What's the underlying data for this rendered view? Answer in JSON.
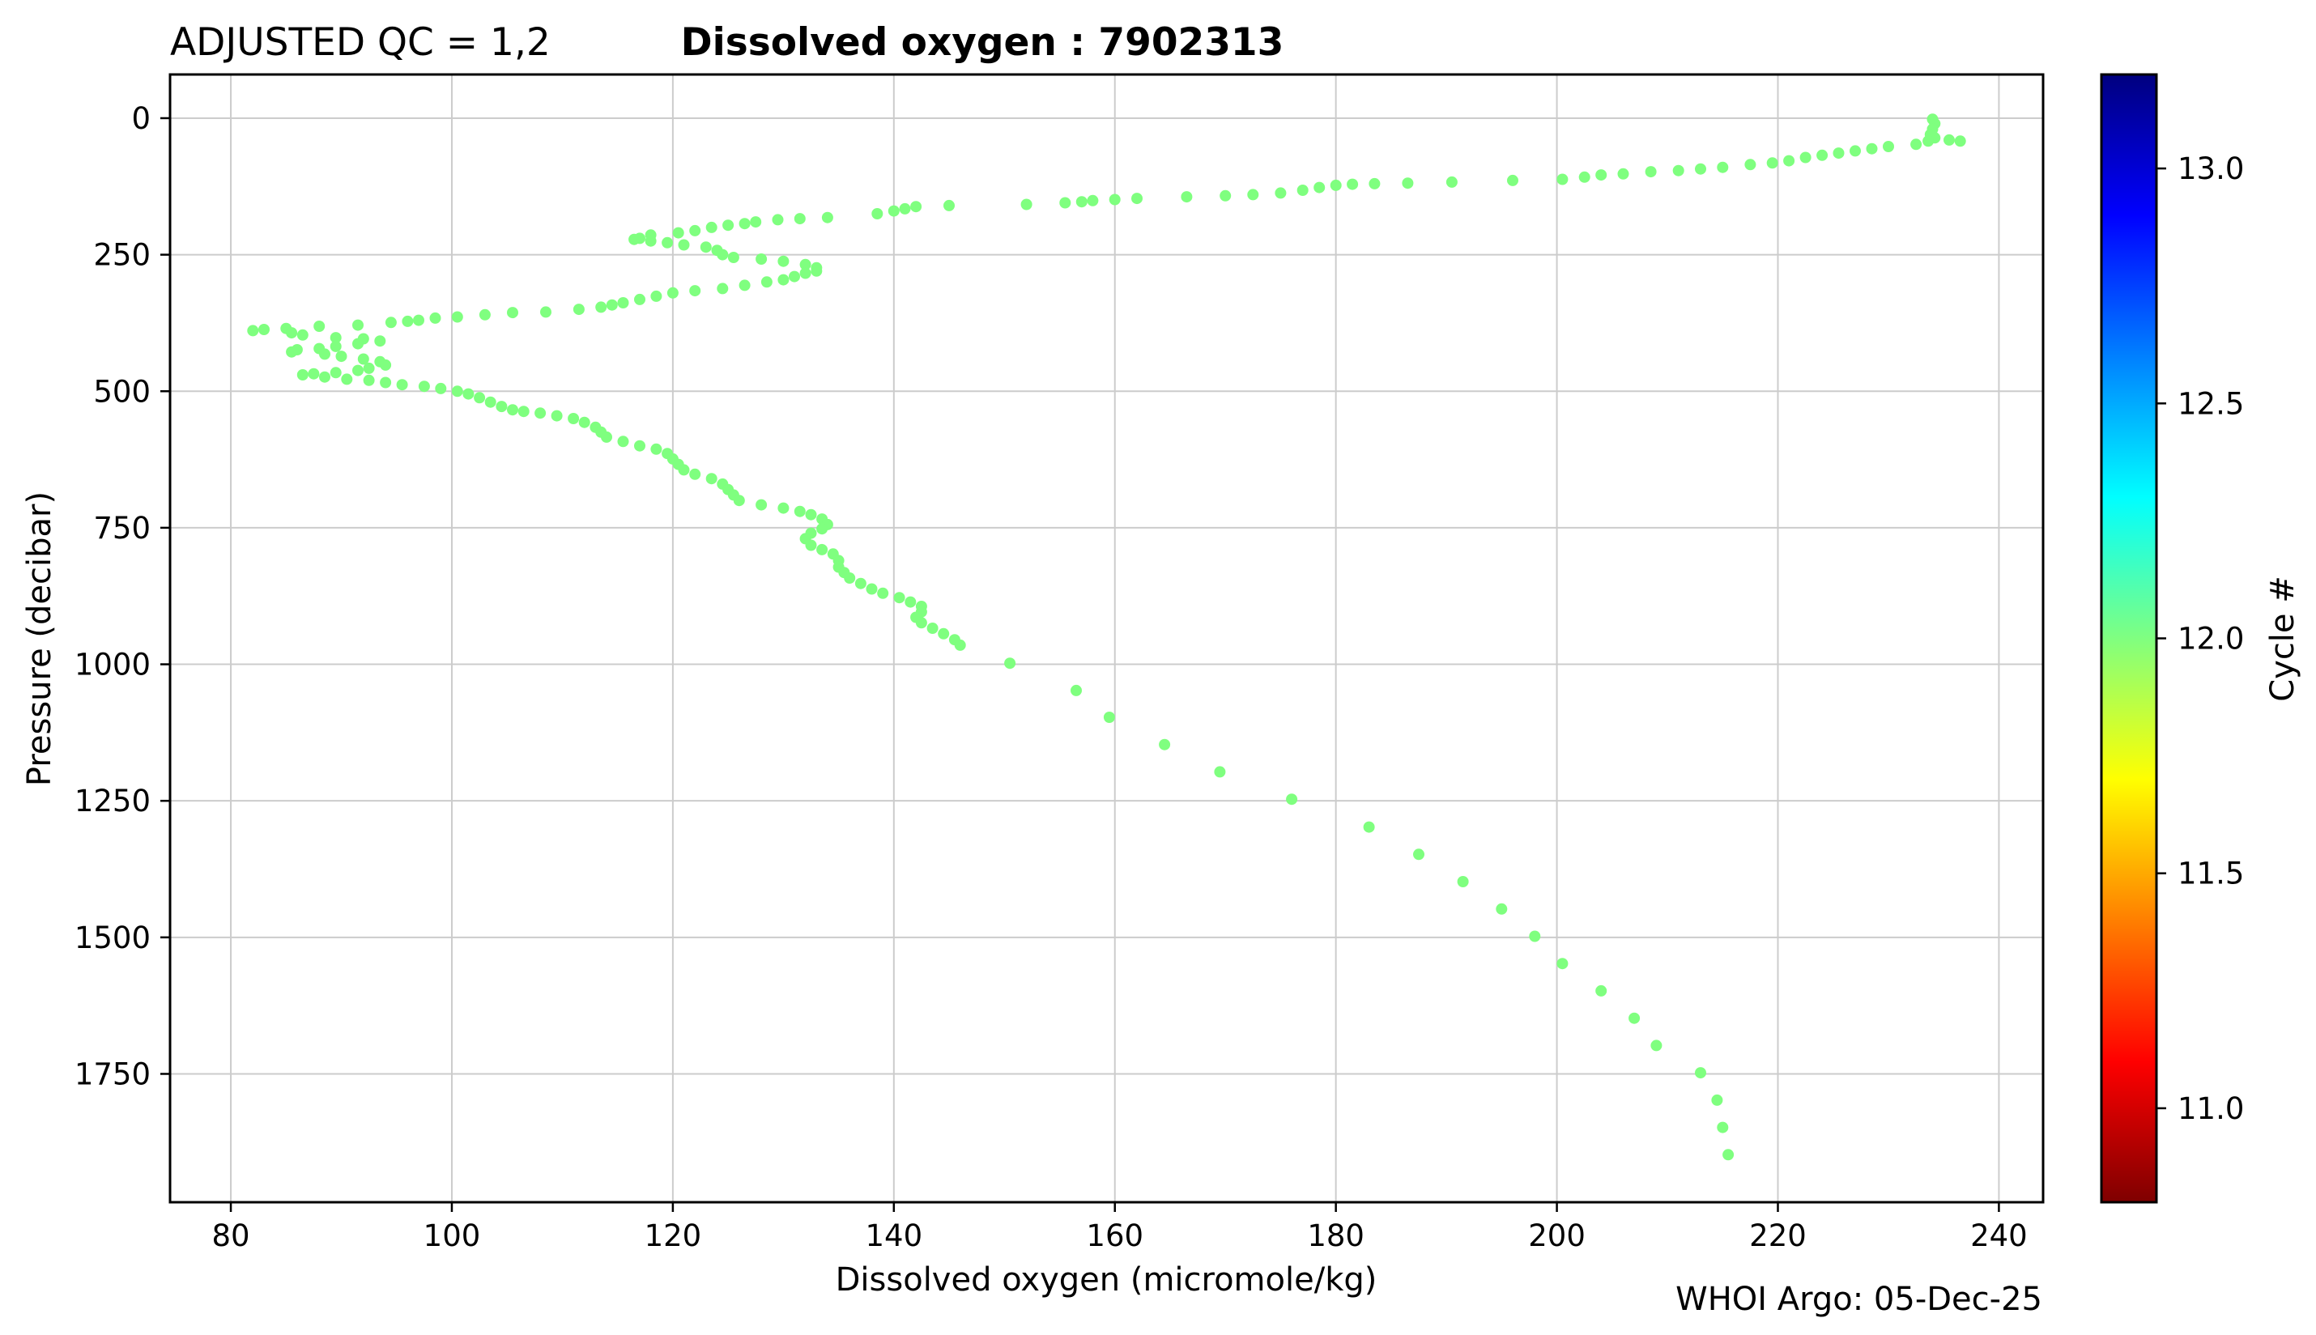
{
  "chart_data": {
    "type": "scatter",
    "title_left": "ADJUSTED QC = 1,2",
    "title": "Dissolved oxygen : 7902313",
    "xlabel": "Dissolved oxygen  (micromole/kg)",
    "ylabel": "Pressure  (decibar)",
    "xlim": [
      74.5,
      244
    ],
    "ylim": [
      1985,
      -80
    ],
    "y_inverted": true,
    "grid": true,
    "xticks": [
      80,
      100,
      120,
      140,
      160,
      180,
      200,
      220,
      240
    ],
    "yticks": [
      0,
      250,
      500,
      750,
      1000,
      1250,
      1500,
      1750
    ],
    "colorbar": {
      "label": "Cycle #",
      "range": [
        10.8,
        13.2
      ],
      "ticks": [
        11.0,
        11.5,
        12.0,
        12.5,
        13.0
      ],
      "colormap": "jet",
      "colormap_stops": [
        "#7f0000",
        "#ff0000",
        "#ff7f00",
        "#ffff00",
        "#80ff80",
        "#00ffff",
        "#0080ff",
        "#0000ff",
        "#00007f"
      ]
    },
    "series": [
      {
        "name": "Cycle 12",
        "cycle": 12,
        "color": "#7fff7f",
        "points": [
          [
            234.0,
            2
          ],
          [
            234.2,
            10
          ],
          [
            234.0,
            20
          ],
          [
            233.8,
            30
          ],
          [
            234.2,
            36
          ],
          [
            233.6,
            42
          ],
          [
            235.5,
            40
          ],
          [
            236.5,
            42
          ],
          [
            232.5,
            48
          ],
          [
            230.0,
            52
          ],
          [
            228.5,
            56
          ],
          [
            227.0,
            60
          ],
          [
            225.5,
            64
          ],
          [
            224.0,
            68
          ],
          [
            222.5,
            72
          ],
          [
            221.0,
            78
          ],
          [
            219.5,
            82
          ],
          [
            217.5,
            85
          ],
          [
            215.0,
            90
          ],
          [
            213.0,
            93
          ],
          [
            211.0,
            96
          ],
          [
            208.5,
            98
          ],
          [
            206.0,
            102
          ],
          [
            204.0,
            104
          ],
          [
            202.5,
            108
          ],
          [
            200.5,
            112
          ],
          [
            196.0,
            114
          ],
          [
            190.5,
            117
          ],
          [
            186.5,
            119
          ],
          [
            183.5,
            120
          ],
          [
            181.5,
            121
          ],
          [
            180.0,
            123
          ],
          [
            178.5,
            127
          ],
          [
            177.0,
            132
          ],
          [
            175.0,
            137
          ],
          [
            172.5,
            140
          ],
          [
            170.0,
            142
          ],
          [
            166.5,
            144
          ],
          [
            162.0,
            147
          ],
          [
            160.0,
            149
          ],
          [
            158.0,
            151
          ],
          [
            157.0,
            153
          ],
          [
            155.5,
            155
          ],
          [
            152.0,
            158
          ],
          [
            145.0,
            160
          ],
          [
            142.0,
            162
          ],
          [
            141.0,
            166
          ],
          [
            140.0,
            170
          ],
          [
            138.5,
            175
          ],
          [
            134.0,
            182
          ],
          [
            131.5,
            184
          ],
          [
            129.5,
            186
          ],
          [
            127.5,
            190
          ],
          [
            126.5,
            193
          ],
          [
            125.0,
            196
          ],
          [
            123.5,
            200
          ],
          [
            122.0,
            206
          ],
          [
            120.5,
            210
          ],
          [
            118.0,
            214
          ],
          [
            117.0,
            220
          ],
          [
            116.5,
            222
          ],
          [
            118.0,
            225
          ],
          [
            119.5,
            228
          ],
          [
            121.0,
            232
          ],
          [
            123.0,
            236
          ],
          [
            124.0,
            242
          ],
          [
            124.5,
            250
          ],
          [
            125.5,
            255
          ],
          [
            128.0,
            258
          ],
          [
            130.0,
            262
          ],
          [
            132.0,
            268
          ],
          [
            133.0,
            274
          ],
          [
            133.0,
            280
          ],
          [
            132.0,
            284
          ],
          [
            131.0,
            290
          ],
          [
            130.0,
            296
          ],
          [
            128.5,
            300
          ],
          [
            126.5,
            306
          ],
          [
            124.5,
            312
          ],
          [
            122.0,
            316
          ],
          [
            120.0,
            320
          ],
          [
            118.5,
            326
          ],
          [
            117.0,
            332
          ],
          [
            115.5,
            338
          ],
          [
            114.5,
            342
          ],
          [
            113.5,
            346
          ],
          [
            111.5,
            350
          ],
          [
            108.5,
            355
          ],
          [
            105.5,
            356
          ],
          [
            103.0,
            360
          ],
          [
            100.5,
            364
          ],
          [
            98.5,
            366
          ],
          [
            97.0,
            370
          ],
          [
            96.0,
            372
          ],
          [
            94.5,
            374
          ],
          [
            91.5,
            379
          ],
          [
            88.0,
            381
          ],
          [
            85.0,
            385
          ],
          [
            83.0,
            387
          ],
          [
            82.0,
            389
          ],
          [
            85.5,
            393
          ],
          [
            86.5,
            397
          ],
          [
            89.5,
            402
          ],
          [
            92.0,
            404
          ],
          [
            93.5,
            408
          ],
          [
            91.5,
            413
          ],
          [
            89.5,
            418
          ],
          [
            88.0,
            422
          ],
          [
            86.0,
            424
          ],
          [
            85.5,
            428
          ],
          [
            88.5,
            432
          ],
          [
            90.0,
            436
          ],
          [
            92.0,
            441
          ],
          [
            93.5,
            446
          ],
          [
            94.0,
            452
          ],
          [
            92.5,
            458
          ],
          [
            91.5,
            462
          ],
          [
            89.5,
            466
          ],
          [
            87.5,
            468
          ],
          [
            86.5,
            470
          ],
          [
            88.5,
            474
          ],
          [
            90.5,
            478
          ],
          [
            92.5,
            480
          ],
          [
            94.0,
            484
          ],
          [
            95.5,
            488
          ],
          [
            97.5,
            491
          ],
          [
            99.0,
            495
          ],
          [
            100.5,
            500
          ],
          [
            101.5,
            505
          ],
          [
            102.5,
            512
          ],
          [
            103.5,
            520
          ],
          [
            104.5,
            528
          ],
          [
            105.5,
            534
          ],
          [
            106.5,
            537
          ],
          [
            108.0,
            540
          ],
          [
            109.5,
            545
          ],
          [
            111.0,
            550
          ],
          [
            112.0,
            557
          ],
          [
            113.0,
            566
          ],
          [
            113.5,
            575
          ],
          [
            114.0,
            584
          ],
          [
            115.5,
            592
          ],
          [
            117.0,
            600
          ],
          [
            118.5,
            606
          ],
          [
            119.5,
            614
          ],
          [
            120.0,
            624
          ],
          [
            120.5,
            634
          ],
          [
            121.0,
            644
          ],
          [
            122.0,
            652
          ],
          [
            123.5,
            660
          ],
          [
            124.5,
            670
          ],
          [
            125.0,
            680
          ],
          [
            125.5,
            690
          ],
          [
            126.0,
            700
          ],
          [
            128.0,
            708
          ],
          [
            130.0,
            714
          ],
          [
            131.5,
            720
          ],
          [
            132.5,
            726
          ],
          [
            133.5,
            734
          ],
          [
            134.0,
            744
          ],
          [
            133.5,
            752
          ],
          [
            132.5,
            760
          ],
          [
            132.0,
            770
          ],
          [
            132.5,
            782
          ],
          [
            133.5,
            790
          ],
          [
            134.5,
            798
          ],
          [
            135.0,
            810
          ],
          [
            135.0,
            822
          ],
          [
            135.5,
            832
          ],
          [
            136.0,
            842
          ],
          [
            137.0,
            852
          ],
          [
            138.0,
            862
          ],
          [
            139.0,
            870
          ],
          [
            140.5,
            878
          ],
          [
            141.5,
            886
          ],
          [
            142.5,
            894
          ],
          [
            142.5,
            904
          ],
          [
            142.0,
            914
          ],
          [
            142.5,
            924
          ],
          [
            143.5,
            934
          ],
          [
            144.5,
            944
          ],
          [
            145.5,
            955
          ],
          [
            146.0,
            965
          ],
          [
            150.5,
            998
          ],
          [
            156.5,
            1048
          ],
          [
            159.5,
            1097
          ],
          [
            164.5,
            1147
          ],
          [
            169.5,
            1197
          ],
          [
            176.0,
            1247
          ],
          [
            183.0,
            1298
          ],
          [
            187.5,
            1348
          ],
          [
            191.5,
            1398
          ],
          [
            195.0,
            1448
          ],
          [
            198.0,
            1498
          ],
          [
            200.5,
            1548
          ],
          [
            204.0,
            1598
          ],
          [
            207.0,
            1648
          ],
          [
            209.0,
            1698
          ],
          [
            213.0,
            1748
          ],
          [
            214.5,
            1798
          ],
          [
            215.0,
            1848
          ],
          [
            215.5,
            1898
          ]
        ]
      }
    ]
  },
  "footer": {
    "credit": "WHOI Argo: 05-Dec-25"
  }
}
